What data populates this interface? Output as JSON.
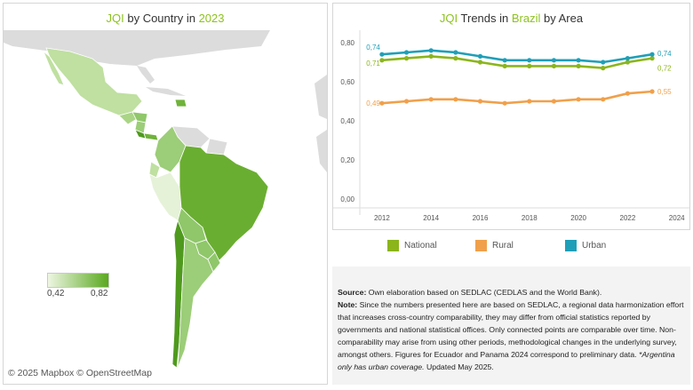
{
  "map_panel": {
    "title_prefix": "JQI",
    "title_mid": " by Country in ",
    "title_year": "2023",
    "legend": {
      "min": "0,42",
      "max": "0,82",
      "colors": [
        "#eef6e2",
        "#5aa81f"
      ]
    },
    "attribution": "© 2025 Mapbox  © OpenStreetMap"
  },
  "chart_panel": {
    "title_prefix": "JQI",
    "title_mid1": " Trends in ",
    "title_country": "Brazil",
    "title_mid2": " by Area"
  },
  "chart_data": {
    "type": "line",
    "x": [
      2012,
      2013,
      2014,
      2015,
      2016,
      2017,
      2018,
      2019,
      2020,
      2021,
      2022,
      2023
    ],
    "xticks": [
      2012,
      2014,
      2016,
      2018,
      2020,
      2022,
      2024
    ],
    "xlim": [
      2011.1,
      2024.3
    ],
    "yticks": [
      0.0,
      0.2,
      0.4,
      0.6,
      0.8
    ],
    "ytick_labels": [
      "0,00",
      "0,20",
      "0,40",
      "0,60",
      "0,80"
    ],
    "ylim": [
      0.0,
      0.8
    ],
    "series": [
      {
        "name": "National",
        "color": "#8bb51b",
        "values": [
          0.71,
          0.72,
          0.73,
          0.72,
          0.7,
          0.68,
          0.68,
          0.68,
          0.68,
          0.67,
          0.7,
          0.72
        ],
        "first_label": "0,71",
        "last_label": "0,72"
      },
      {
        "name": "Rural",
        "color": "#f0a04b",
        "values": [
          0.49,
          0.5,
          0.51,
          0.51,
          0.5,
          0.49,
          0.5,
          0.5,
          0.51,
          0.51,
          0.54,
          0.55
        ],
        "first_label": "0,49",
        "last_label": "0,55"
      },
      {
        "name": "Urban",
        "color": "#1f9fb8",
        "values": [
          0.74,
          0.75,
          0.76,
          0.75,
          0.73,
          0.71,
          0.71,
          0.71,
          0.71,
          0.7,
          0.72,
          0.74
        ],
        "first_label": "0,74",
        "last_label": "0,74"
      }
    ]
  },
  "source": {
    "source_label": "Source:",
    "source_text": " Own elaboration based on SEDLAC (CEDLAS and the World Bank).",
    "note_label": "Note:",
    "note_text": " Since the numbers presented here are based on SEDLAC, a regional data harmonization effort that increases cross-country comparability, they may differ from official statistics reported by governments and national statistical offices. Only connected points are comparable over time. Non-comparability may arise from using other periods, methodological changes in the underlying survey, amongst others. Figures for Ecuador and Panama 2024 correspond to preliminary data. ",
    "italic_text": "*Argentina only has urban coverage.",
    "updated_text": " Updated May 2025."
  }
}
